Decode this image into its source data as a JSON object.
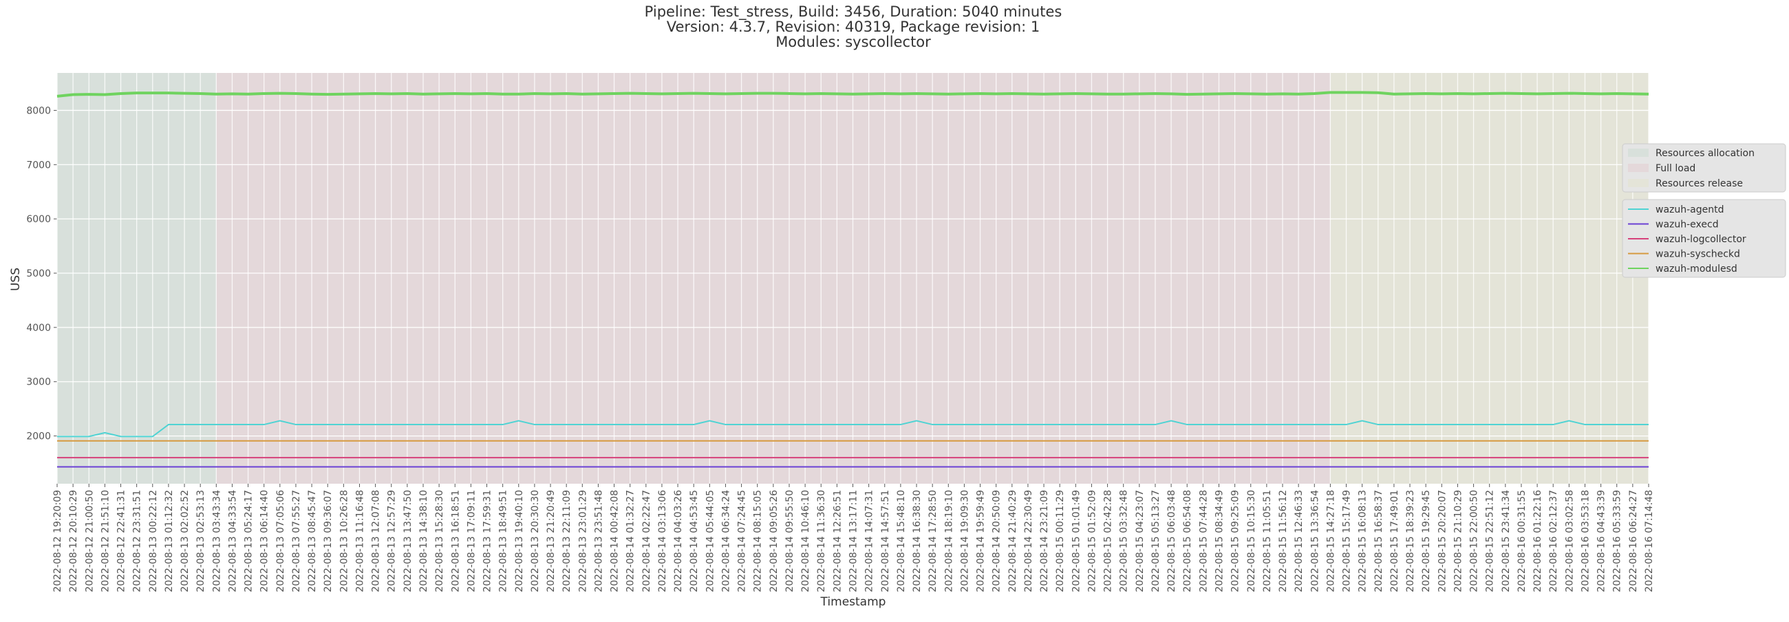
{
  "chart_data": {
    "type": "line",
    "title_lines": [
      "Pipeline: Test_stress, Build: 3456, Duration: 5040 minutes",
      "Version: 4.3.7, Revision: 40319, Package revision: 1",
      "Modules: syscollector"
    ],
    "xlabel": "Timestamp",
    "ylabel": "USS",
    "categories": [
      "2022-08-12 19:20:09",
      "2022-08-12 20:10:29",
      "2022-08-12 21:00:50",
      "2022-08-12 21:51:10",
      "2022-08-12 22:41:31",
      "2022-08-12 23:31:51",
      "2022-08-13 00:22:12",
      "2022-08-13 01:12:32",
      "2022-08-13 02:02:52",
      "2022-08-13 02:53:13",
      "2022-08-13 03:43:34",
      "2022-08-13 04:33:54",
      "2022-08-13 05:24:17",
      "2022-08-13 06:14:40",
      "2022-08-13 07:05:06",
      "2022-08-13 07:55:27",
      "2022-08-13 08:45:47",
      "2022-08-13 09:36:07",
      "2022-08-13 10:26:28",
      "2022-08-13 11:16:48",
      "2022-08-13 12:07:08",
      "2022-08-13 12:57:29",
      "2022-08-13 13:47:50",
      "2022-08-13 14:38:10",
      "2022-08-13 15:28:30",
      "2022-08-13 16:18:51",
      "2022-08-13 17:09:11",
      "2022-08-13 17:59:31",
      "2022-08-13 18:49:51",
      "2022-08-13 19:40:10",
      "2022-08-13 20:30:30",
      "2022-08-13 21:20:49",
      "2022-08-13 22:11:09",
      "2022-08-13 23:01:29",
      "2022-08-13 23:51:48",
      "2022-08-14 00:42:08",
      "2022-08-14 01:32:27",
      "2022-08-14 02:22:47",
      "2022-08-14 03:13:06",
      "2022-08-14 04:03:26",
      "2022-08-14 04:53:45",
      "2022-08-14 05:44:05",
      "2022-08-14 06:34:24",
      "2022-08-14 07:24:45",
      "2022-08-14 08:15:05",
      "2022-08-14 09:05:26",
      "2022-08-14 09:55:50",
      "2022-08-14 10:46:10",
      "2022-08-14 11:36:30",
      "2022-08-14 12:26:51",
      "2022-08-14 13:17:11",
      "2022-08-14 14:07:31",
      "2022-08-14 14:57:51",
      "2022-08-14 15:48:10",
      "2022-08-14 16:38:30",
      "2022-08-14 17:28:50",
      "2022-08-14 18:19:10",
      "2022-08-14 19:09:30",
      "2022-08-14 19:59:49",
      "2022-08-14 20:50:09",
      "2022-08-14 21:40:29",
      "2022-08-14 22:30:49",
      "2022-08-14 23:21:09",
      "2022-08-15 00:11:29",
      "2022-08-15 01:01:49",
      "2022-08-15 01:52:09",
      "2022-08-15 02:42:28",
      "2022-08-15 03:32:48",
      "2022-08-15 04:23:07",
      "2022-08-15 05:13:27",
      "2022-08-15 06:03:48",
      "2022-08-15 06:54:08",
      "2022-08-15 07:44:28",
      "2022-08-15 08:34:49",
      "2022-08-15 09:25:09",
      "2022-08-15 10:15:30",
      "2022-08-15 11:05:51",
      "2022-08-15 11:56:12",
      "2022-08-15 12:46:33",
      "2022-08-15 13:36:54",
      "2022-08-15 14:27:18",
      "2022-08-15 15:17:49",
      "2022-08-15 16:08:13",
      "2022-08-15 16:58:37",
      "2022-08-15 17:49:01",
      "2022-08-15 18:39:23",
      "2022-08-15 19:29:45",
      "2022-08-15 20:20:07",
      "2022-08-15 21:10:29",
      "2022-08-15 22:00:50",
      "2022-08-15 22:51:12",
      "2022-08-15 23:41:34",
      "2022-08-16 00:31:55",
      "2022-08-16 01:22:16",
      "2022-08-16 02:12:37",
      "2022-08-16 03:02:58",
      "2022-08-16 03:53:18",
      "2022-08-16 04:43:39",
      "2022-08-16 05:33:59",
      "2022-08-16 06:24:27",
      "2022-08-16 07:14:48"
    ],
    "regions": [
      {
        "name": "Resources allocation",
        "color": "#d8e0db",
        "from": 0,
        "to": 10
      },
      {
        "name": "Full load",
        "color": "#e4d8da",
        "from": 10,
        "to": 80
      },
      {
        "name": "Resources release",
        "color": "#e4e4d8",
        "from": 80,
        "to": 100
      }
    ],
    "series": [
      {
        "name": "wazuh-agentd",
        "color": "#4fd3d3",
        "values": [
          1990,
          1990,
          1990,
          2060,
          1990,
          1990,
          1990,
          2210,
          2210,
          2210,
          2210,
          2210,
          2210,
          2210,
          2280,
          2210,
          2210,
          2210,
          2210,
          2210,
          2210,
          2210,
          2210,
          2210,
          2210,
          2210,
          2210,
          2210,
          2210,
          2280,
          2210,
          2210,
          2210,
          2210,
          2210,
          2210,
          2210,
          2210,
          2210,
          2210,
          2210,
          2280,
          2210,
          2210,
          2210,
          2210,
          2210,
          2210,
          2210,
          2210,
          2210,
          2210,
          2210,
          2210,
          2280,
          2210,
          2210,
          2210,
          2210,
          2210,
          2210,
          2210,
          2210,
          2210,
          2210,
          2210,
          2210,
          2210,
          2210,
          2210,
          2280,
          2210,
          2210,
          2210,
          2210,
          2210,
          2210,
          2210,
          2210,
          2210,
          2210,
          2210,
          2280,
          2210,
          2210,
          2210,
          2210,
          2210,
          2210,
          2210,
          2210,
          2210,
          2210,
          2210,
          2210,
          2280,
          2210,
          2210,
          2210,
          2210,
          2210
        ]
      },
      {
        "name": "wazuh-execd",
        "color": "#6a40d4",
        "values": [
          1430,
          1430,
          1430,
          1430,
          1430,
          1430,
          1430,
          1430,
          1430,
          1430,
          1430,
          1430,
          1430,
          1430,
          1430,
          1430,
          1430,
          1430,
          1430,
          1430,
          1430,
          1430,
          1430,
          1430,
          1430,
          1430,
          1430,
          1430,
          1430,
          1430,
          1430,
          1430,
          1430,
          1430,
          1430,
          1430,
          1430,
          1430,
          1430,
          1430,
          1430,
          1430,
          1430,
          1430,
          1430,
          1430,
          1430,
          1430,
          1430,
          1430,
          1430,
          1430,
          1430,
          1430,
          1430,
          1430,
          1430,
          1430,
          1430,
          1430,
          1430,
          1430,
          1430,
          1430,
          1430,
          1430,
          1430,
          1430,
          1430,
          1430,
          1430,
          1430,
          1430,
          1430,
          1430,
          1430,
          1430,
          1430,
          1430,
          1430,
          1430,
          1430,
          1430,
          1430,
          1430,
          1430,
          1430,
          1430,
          1430,
          1430,
          1430,
          1430,
          1430,
          1430,
          1430,
          1430,
          1430,
          1430,
          1430,
          1430,
          1430
        ]
      },
      {
        "name": "wazuh-logcollector",
        "color": "#d6407a",
        "values": [
          1600,
          1600,
          1600,
          1600,
          1600,
          1600,
          1600,
          1600,
          1600,
          1600,
          1600,
          1600,
          1600,
          1600,
          1600,
          1600,
          1600,
          1600,
          1600,
          1600,
          1600,
          1600,
          1600,
          1600,
          1600,
          1600,
          1600,
          1600,
          1600,
          1600,
          1600,
          1600,
          1600,
          1600,
          1600,
          1600,
          1600,
          1600,
          1600,
          1600,
          1600,
          1600,
          1600,
          1600,
          1600,
          1600,
          1600,
          1600,
          1600,
          1600,
          1600,
          1600,
          1600,
          1600,
          1600,
          1600,
          1600,
          1600,
          1600,
          1600,
          1600,
          1600,
          1600,
          1600,
          1600,
          1600,
          1600,
          1600,
          1600,
          1600,
          1600,
          1600,
          1600,
          1600,
          1600,
          1600,
          1600,
          1600,
          1600,
          1600,
          1600,
          1600,
          1600,
          1600,
          1600,
          1600,
          1600,
          1600,
          1600,
          1600,
          1600,
          1600,
          1600,
          1600,
          1600,
          1600,
          1600,
          1600,
          1600,
          1600,
          1600
        ]
      },
      {
        "name": "wazuh-syscheckd",
        "color": "#d69a40",
        "values": [
          1910,
          1910,
          1910,
          1910,
          1910,
          1910,
          1910,
          1910,
          1910,
          1910,
          1910,
          1910,
          1910,
          1910,
          1910,
          1910,
          1910,
          1910,
          1910,
          1910,
          1910,
          1910,
          1910,
          1910,
          1910,
          1910,
          1910,
          1910,
          1910,
          1910,
          1910,
          1910,
          1910,
          1910,
          1910,
          1910,
          1910,
          1910,
          1910,
          1910,
          1910,
          1910,
          1910,
          1910,
          1910,
          1910,
          1910,
          1910,
          1910,
          1910,
          1910,
          1910,
          1910,
          1910,
          1910,
          1910,
          1910,
          1910,
          1910,
          1910,
          1910,
          1910,
          1910,
          1910,
          1910,
          1910,
          1910,
          1910,
          1910,
          1910,
          1910,
          1910,
          1910,
          1910,
          1910,
          1910,
          1910,
          1910,
          1910,
          1910,
          1910,
          1910,
          1910,
          1910,
          1910,
          1910,
          1910,
          1910,
          1910,
          1910,
          1910,
          1910,
          1910,
          1910,
          1910,
          1910,
          1910,
          1910,
          1910,
          1910,
          1910
        ]
      },
      {
        "name": "wazuh-modulesd",
        "color": "#6fd35f",
        "values": [
          8260,
          8290,
          8295,
          8290,
          8310,
          8320,
          8320,
          8320,
          8315,
          8310,
          8300,
          8305,
          8300,
          8310,
          8315,
          8310,
          8300,
          8295,
          8300,
          8305,
          8310,
          8305,
          8310,
          8300,
          8305,
          8310,
          8305,
          8310,
          8300,
          8300,
          8310,
          8305,
          8310,
          8300,
          8305,
          8310,
          8315,
          8310,
          8305,
          8310,
          8315,
          8310,
          8305,
          8310,
          8315,
          8315,
          8310,
          8305,
          8310,
          8305,
          8300,
          8305,
          8310,
          8305,
          8310,
          8305,
          8300,
          8305,
          8310,
          8305,
          8310,
          8305,
          8300,
          8305,
          8310,
          8305,
          8300,
          8300,
          8305,
          8310,
          8305,
          8295,
          8300,
          8305,
          8310,
          8305,
          8300,
          8305,
          8300,
          8310,
          8330,
          8330,
          8330,
          8325,
          8300,
          8305,
          8310,
          8305,
          8310,
          8305,
          8310,
          8315,
          8310,
          8305,
          8310,
          8315,
          8310,
          8305,
          8310,
          8305,
          8300
        ]
      }
    ],
    "ylim": [
      1120,
      8690
    ],
    "yticks": [
      2000,
      3000,
      4000,
      5000,
      6000,
      7000,
      8000
    ],
    "grid": true,
    "legend": "right"
  }
}
